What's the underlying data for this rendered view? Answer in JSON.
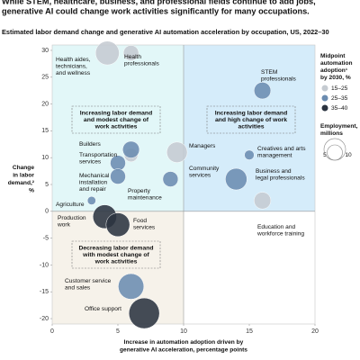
{
  "chart_data": {
    "type": "bubble",
    "title": [
      "While STEM, healthcare, business, and professional fields continue to add jobs,",
      "generative AI could change work activities significantly for many occupations."
    ],
    "subtitle": "Estimated labor demand change and generative AI automation acceleration by occupation, US, 2022–30",
    "x_label": [
      "Increase in automation adoption driven by",
      "generative AI acceleration, percentage points"
    ],
    "y_label": [
      "Change",
      "in labor",
      "demand,²",
      "%"
    ],
    "xlim": [
      0,
      20
    ],
    "ylim": [
      -21,
      31
    ],
    "xticks": [
      0,
      5,
      10,
      15,
      20
    ],
    "yticks": [
      -20,
      -15,
      -10,
      -5,
      0,
      5,
      10,
      15,
      20,
      25,
      30
    ],
    "quadrant_labels": [
      [
        "Increasing labor demand",
        "and modest change of",
        "work activities"
      ],
      [
        "Increasing labor demand",
        "and high change of work",
        "activities"
      ],
      [
        "Decreasing labor demand",
        "with modest change of",
        "work activities"
      ]
    ],
    "legend_title": [
      "Midpoint",
      "automation",
      "adoption¹",
      "by 2030, %"
    ],
    "size_legend_title": [
      "Employment,",
      "millions"
    ],
    "size_legend": [
      5,
      10
    ],
    "series": [
      {
        "name": "15–25",
        "color": "#c5cbd1",
        "x": [
          4.2,
          6,
          9.5,
          6,
          16
        ],
        "y": [
          29.5,
          29.5,
          11,
          10.5,
          2
        ],
        "size": [
          12,
          5,
          9,
          4,
          6
        ],
        "labels": [
          [
            "Health aides,",
            "technicians,",
            "and wellness"
          ],
          [
            "Health",
            "professionals"
          ],
          [
            "Managers"
          ],
          [
            "Property",
            "maintenance"
          ],
          [
            "Education and",
            "workforce training"
          ]
        ]
      },
      {
        "name": "25–35",
        "color": "#6b8cb0",
        "x": [
          16,
          6,
          5,
          5,
          9,
          15,
          14,
          3,
          6
        ],
        "y": [
          22.5,
          11.5,
          9,
          6.5,
          6,
          10.5,
          6,
          2,
          -14
        ],
        "size": [
          6,
          6,
          5,
          5,
          5,
          2,
          10,
          1.5,
          14
        ],
        "labels": [
          [
            "STEM",
            "professionals"
          ],
          [
            "Builders"
          ],
          [
            "Transportation",
            "services"
          ],
          [
            "Mechanical",
            "installation",
            "and repair"
          ],
          [
            "Community",
            "services"
          ],
          [
            "Creatives and arts",
            "management"
          ],
          [
            "Business and",
            "legal professionals"
          ],
          [
            "Agriculture"
          ],
          [
            "Customer service",
            "and sales"
          ]
        ]
      },
      {
        "name": "35–40",
        "color": "#2b3340",
        "x": [
          4,
          5,
          7
        ],
        "y": [
          -1,
          -2.5,
          -19
        ],
        "size": [
          12,
          12,
          20
        ],
        "labels": [
          [
            "Production",
            "work"
          ],
          [
            "Food",
            "services"
          ],
          [
            "Office support"
          ]
        ]
      }
    ]
  }
}
